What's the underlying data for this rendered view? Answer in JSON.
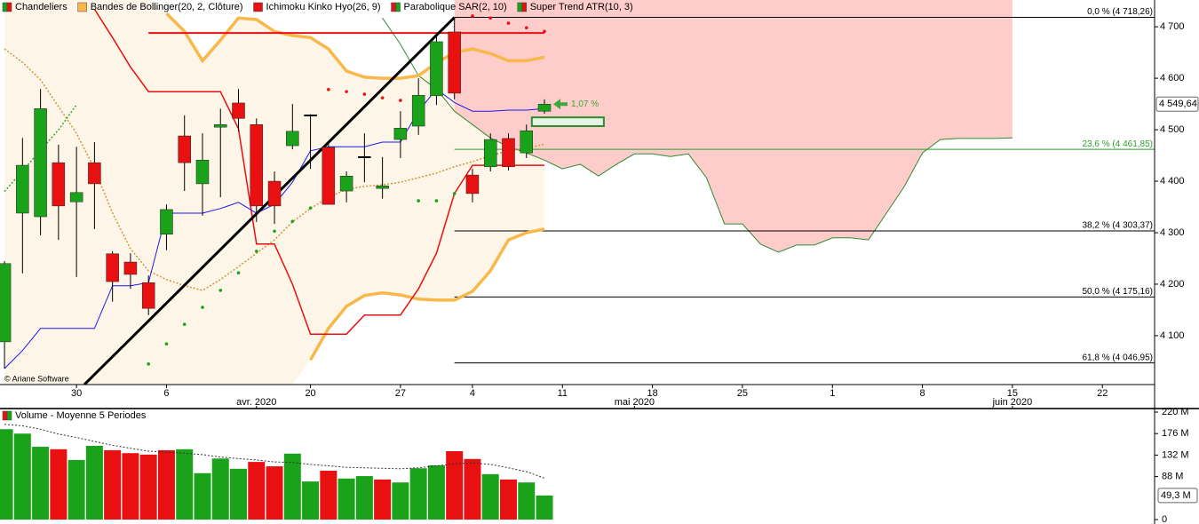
{
  "chart_data": [
    {
      "type": "candlestick",
      "legend": [
        {
          "name": "Chandeliers",
          "colors": [
            "#1aa31a",
            "#e81010"
          ]
        },
        {
          "name": "Bandes de Bollinger(20, 2, Clôture)",
          "colors": [
            "#f8b84a"
          ]
        },
        {
          "name": "Ichimoku Kinko Hyo(26, 9)",
          "colors": [
            "#e81010"
          ]
        },
        {
          "name": "Parabolique SAR(2, 10)",
          "colors": [
            "#e81010",
            "#1aa31a"
          ]
        },
        {
          "name": "Super Trend ATR(10, 3)",
          "colors": [
            "#1aa31a",
            "#e81010"
          ]
        }
      ],
      "x": [
        0,
        1,
        2,
        3,
        4,
        5,
        6,
        7,
        8,
        9,
        10,
        11,
        12,
        13,
        14,
        15,
        16,
        17,
        18,
        19,
        20,
        21,
        22,
        23,
        24,
        25,
        26,
        27,
        28,
        29,
        30
      ],
      "open": [
        4088,
        4338,
        4331,
        4436,
        4360,
        4436,
        4259,
        4243,
        4203,
        4297,
        4488,
        4395,
        4505,
        4552,
        4510,
        4400,
        4469,
        4529,
        4466,
        4381,
        4448,
        4386,
        4481,
        4507,
        4566,
        4690,
        4412,
        4428,
        4483,
        4455,
        4536
      ],
      "high": [
        4245,
        4484,
        4579,
        4471,
        4467,
        4476,
        4264,
        4260,
        4217,
        4355,
        4528,
        4493,
        4541,
        4579,
        4522,
        4419,
        4550,
        4530,
        4476,
        4419,
        4493,
        4447,
        4536,
        4600,
        4686,
        4717,
        4424,
        4493,
        4493,
        4510,
        4559
      ],
      "low": [
        4036,
        4221,
        4295,
        4286,
        4214,
        4307,
        4166,
        4191,
        4140,
        4266,
        4381,
        4333,
        4369,
        4497,
        4321,
        4317,
        4462,
        4424,
        4355,
        4359,
        4398,
        4366,
        4445,
        4490,
        4548,
        4559,
        4359,
        4419,
        4421,
        4445,
        4531
      ],
      "close": [
        4240,
        4431,
        4541,
        4352,
        4378,
        4395,
        4205,
        4219,
        4153,
        4345,
        4436,
        4441,
        4510,
        4522,
        4352,
        4352,
        4497,
        4529,
        4355,
        4410,
        4448,
        4391,
        4503,
        4567,
        4671,
        4571,
        4376,
        4481,
        4428,
        4498,
        4549.64
      ],
      "up_color": "#1aa31a",
      "down_color": "#e81010",
      "flat_color": "#000000",
      "bollinger": {
        "upper": [
          null,
          null,
          null,
          null,
          null,
          null,
          null,
          null,
          null,
          4726,
          4691,
          4634,
          4674,
          4717,
          4714,
          4691,
          4683,
          4679,
          4657,
          4614,
          4602,
          4600,
          4600,
          4605,
          4630,
          4650,
          4657,
          4648,
          4634,
          4634,
          4641
        ],
        "middle": [
          4657,
          4631,
          4597,
          4545,
          4493,
          4424,
          4338,
          4269,
          4226,
          4209,
          4197,
          4188,
          4209,
          4234,
          4260,
          4286,
          4321,
          4347,
          4369,
          4384,
          4390,
          4393,
          4398,
          4407,
          4416,
          4428,
          4438,
          4450,
          4459,
          4464,
          4472
        ],
        "lower": [
          null,
          null,
          null,
          null,
          null,
          null,
          null,
          null,
          null,
          null,
          null,
          null,
          null,
          null,
          null,
          null,
          null,
          4053,
          4114,
          4157,
          4178,
          4183,
          4179,
          4171,
          4169,
          4169,
          4186,
          4226,
          4286,
          4300,
          4307
        ],
        "color": "#f8b84a",
        "middle_color": "#c89a3a",
        "fill": "#fdf5e8"
      },
      "ichimoku": {
        "tenkan": [
          4036,
          4071,
          4114,
          4114,
          4114,
          4114,
          4197,
          4197,
          4203,
          4338,
          4338,
          4338,
          4347,
          4359,
          4338,
          4355,
          4398,
          4459,
          4467,
          4467,
          4467,
          4476,
          4476,
          4536,
          4579,
          4553,
          4536,
          4536,
          4538,
          4538,
          4541
        ],
        "kijun": [
          null,
          null,
          null,
          null,
          null,
          4734,
          4679,
          4622,
          4574,
          4574,
          4574,
          4574,
          4574,
          4502,
          4278,
          4278,
          4200,
          4103,
          4103,
          4103,
          4140,
          4140,
          4140,
          4191,
          4260,
          4376,
          4431,
          4431,
          4431,
          4431,
          4431
        ],
        "span": [
          null,
          null,
          null,
          null,
          null,
          null,
          null,
          null,
          4688,
          4688,
          4688,
          4688,
          4688,
          4688,
          4688,
          4688,
          4688,
          4688,
          4688,
          4688,
          4688,
          4688,
          4688,
          4688,
          4688,
          4688,
          4688,
          4688,
          4688,
          4688,
          4688
        ],
        "tenkan_color": "#1a1ae6",
        "kijun_color": "#e81010"
      },
      "sar": {
        "values": [
          null,
          null,
          null,
          null,
          null,
          null,
          null,
          null,
          4045,
          4084,
          4122,
          4155,
          4188,
          4222,
          4264,
          4303,
          4322,
          4348,
          4578,
          4574,
          4569,
          4562,
          4557,
          4362,
          4362,
          4376,
          4721,
          4717,
          4707,
          4698,
          4691
        ],
        "colors": [
          null,
          null,
          null,
          null,
          null,
          null,
          null,
          null,
          "#1aa31a",
          "#1aa31a",
          "#1aa31a",
          "#1aa31a",
          "#1aa31a",
          "#1aa31a",
          "#1aa31a",
          "#1aa31a",
          "#1aa31a",
          "#1aa31a",
          "#e81010",
          "#e81010",
          "#e81010",
          "#e81010",
          "#e81010",
          "#1aa31a",
          "#1aa31a",
          "#1aa31a",
          "#e81010",
          "#e81010",
          "#e81010",
          "#e81010",
          "#e81010"
        ]
      },
      "supertrend": {
        "values": [
          4380,
          4420,
          4460,
          4500,
          4548,
          null,
          null,
          null,
          null,
          null,
          null,
          null,
          null,
          null,
          null,
          null,
          null,
          null,
          null,
          null,
          null,
          null,
          null,
          null,
          null,
          null,
          null,
          null,
          null,
          null,
          null
        ],
        "color": "#33aa33"
      },
      "cloud": {
        "x": [
          21,
          22,
          23,
          24,
          25,
          26,
          27,
          28,
          29,
          30,
          31,
          32,
          33,
          34,
          35,
          36,
          37,
          38,
          39,
          40,
          41,
          42,
          43,
          44,
          45,
          46,
          47,
          48,
          49,
          50,
          51,
          52,
          53,
          54,
          55,
          56
        ],
        "values": [
          4717,
          4666,
          4605,
          4579,
          4536,
          4510,
          4484,
          4467,
          4455,
          4441,
          4424,
          4433,
          4410,
          4433,
          4453,
          4453,
          4448,
          4453,
          4407,
          4317,
          4317,
          4278,
          4262,
          4276,
          4276,
          4290,
          4290,
          4286,
          4338,
          4390,
          4455,
          4481,
          4483,
          4483,
          4483,
          4484
        ],
        "fill_x": [
          25,
          56
        ],
        "line_color": "#2e8b2e",
        "fill_color": "#ffcccc"
      },
      "fibonacci": {
        "levels": [
          {
            "value": 4718.26,
            "label": "0,0 % (4 718,26)"
          },
          {
            "value": 4461.85,
            "label": "23,6 % (4 461,85)"
          },
          {
            "value": 4303.37,
            "label": "38,2 % (4 303,37)"
          },
          {
            "value": 4175.16,
            "label": "50,0 % (4 175,16)"
          },
          {
            "value": 4046.95,
            "label": "61,8 % (4 046,95)"
          }
        ],
        "colors": [
          "#000000",
          "#2e9e2e",
          "#000000",
          "#000000",
          "#000000"
        ],
        "x_start": 25
      },
      "trendline": {
        "x": [
          4.44,
          25
        ],
        "values": [
          4005,
          4718.26
        ],
        "color": "#000000"
      },
      "box": {
        "x": [
          29.3,
          33.3
        ],
        "values": [
          4507,
          4524
        ],
        "color": "#2e8b2e"
      },
      "annotation": {
        "text": "1,07 %",
        "color": "#3aa83a"
      },
      "current_price": {
        "value": 4549.64,
        "label": "4 549,64"
      },
      "credit": "© Ariane Software",
      "xlim": [
        -0.25,
        63.9
      ],
      "ylim": [
        4005,
        4752
      ],
      "xticks": [
        {
          "value": 4,
          "label": "30"
        },
        {
          "value": 9,
          "label": "6"
        },
        {
          "value": 17,
          "label": "20"
        },
        {
          "value": 22,
          "label": "27"
        },
        {
          "value": 26,
          "label": "4"
        },
        {
          "value": 31,
          "label": "11"
        },
        {
          "value": 36,
          "label": "18"
        },
        {
          "value": 41,
          "label": "25"
        },
        {
          "value": 46,
          "label": "1"
        },
        {
          "value": 51,
          "label": "8"
        },
        {
          "value": 56,
          "label": "15"
        },
        {
          "value": 61,
          "label": "22"
        }
      ],
      "month_ticks": [
        {
          "value": 14,
          "label": "avr. 2020"
        },
        {
          "value": 35,
          "label": "mai 2020"
        },
        {
          "value": 56,
          "label": "juin 2020"
        }
      ],
      "yticks": [
        {
          "value": 4100,
          "label": "4 100"
        },
        {
          "value": 4200,
          "label": "4 200"
        },
        {
          "value": 4300,
          "label": "4 300"
        },
        {
          "value": 4400,
          "label": "4 400"
        },
        {
          "value": 4500,
          "label": "4 500"
        },
        {
          "value": 4600,
          "label": "4 600"
        },
        {
          "value": 4700,
          "label": "4 700"
        }
      ]
    },
    {
      "type": "bar",
      "title": "Volume - Moyenne 5 Periodes",
      "icon_colors": [
        "#e81010",
        "#1aa31a"
      ],
      "values": [
        185,
        176,
        149,
        144,
        122,
        151,
        142,
        136,
        133,
        142,
        144,
        95,
        125,
        104,
        118,
        109,
        135,
        78,
        100,
        84,
        89,
        82,
        76,
        105,
        111,
        140,
        124,
        93,
        82,
        76,
        49.3
      ],
      "colors": [
        "#1aa31a",
        "#1aa31a",
        "#1aa31a",
        "#e81010",
        "#1aa31a",
        "#1aa31a",
        "#e81010",
        "#e81010",
        "#e81010",
        "#e81010",
        "#1aa31a",
        "#1aa31a",
        "#1aa31a",
        "#1aa31a",
        "#e81010",
        "#e81010",
        "#1aa31a",
        "#1aa31a",
        "#e81010",
        "#1aa31a",
        "#1aa31a",
        "#e81010",
        "#1aa31a",
        "#1aa31a",
        "#1aa31a",
        "#e81010",
        "#e81010",
        "#1aa31a",
        "#e81010",
        "#1aa31a",
        "#1aa31a"
      ],
      "moving_average": [
        195,
        192,
        185,
        175,
        168,
        160,
        152,
        146,
        140,
        138,
        136,
        133,
        128,
        125,
        122,
        118,
        117,
        113,
        110,
        107,
        106,
        105,
        104,
        106,
        110,
        114,
        116,
        113,
        106,
        98,
        85
      ],
      "ma_color": "#333333",
      "current_value": {
        "value": 49.3,
        "label": "49,3 M"
      },
      "ylim": [
        0,
        225.5
      ],
      "yticks": [
        0,
        {
          "value": 88,
          "label": "88 M"
        },
        {
          "value": 132,
          "label": "132 M"
        },
        {
          "value": 176,
          "label": "176 M"
        },
        {
          "value": 220,
          "label": "220 M"
        }
      ]
    }
  ]
}
